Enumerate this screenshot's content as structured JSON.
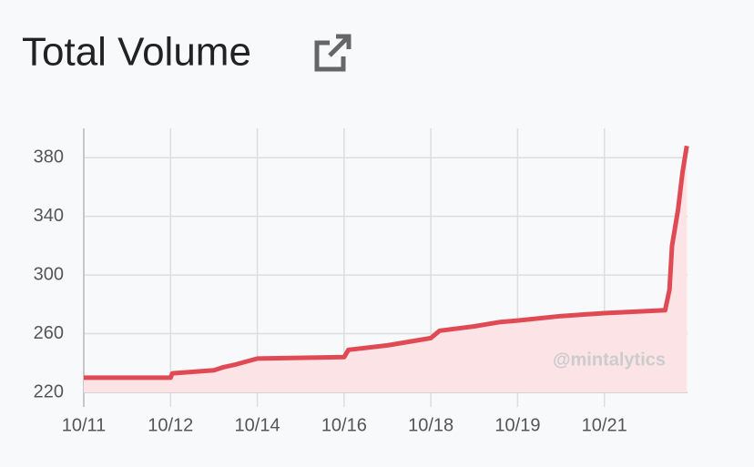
{
  "chart_data": {
    "type": "line",
    "title": "Total Volume",
    "watermark": "@mintalytics",
    "x": [
      0,
      1,
      1.02,
      1.5,
      1.6,
      1.75,
      2,
      3,
      3.05,
      3.5,
      4,
      4.1,
      4.5,
      4.8,
      5,
      5.5,
      6,
      6.7,
      6.75,
      6.78,
      6.85,
      6.9,
      6.95
    ],
    "values": [
      230,
      230,
      233,
      235,
      237,
      239,
      243,
      244,
      249,
      252,
      257,
      262,
      265,
      268,
      269,
      272,
      274,
      276,
      290,
      320,
      345,
      370,
      388
    ],
    "color": "#e04a55",
    "fill": "#fbe3e6",
    "xlim": [
      0,
      7
    ],
    "xticks": [
      {
        "value": 0,
        "label": "10/11"
      },
      {
        "value": 1,
        "label": "10/12"
      },
      {
        "value": 2,
        "label": "10/14"
      },
      {
        "value": 3,
        "label": "10/16"
      },
      {
        "value": 4,
        "label": "10/18"
      },
      {
        "value": 5,
        "label": "10/19"
      },
      {
        "value": 6,
        "label": "10/21"
      }
    ],
    "ylim": [
      220,
      400
    ],
    "yticks": [
      220,
      260,
      300,
      340,
      380
    ],
    "grid": true
  }
}
